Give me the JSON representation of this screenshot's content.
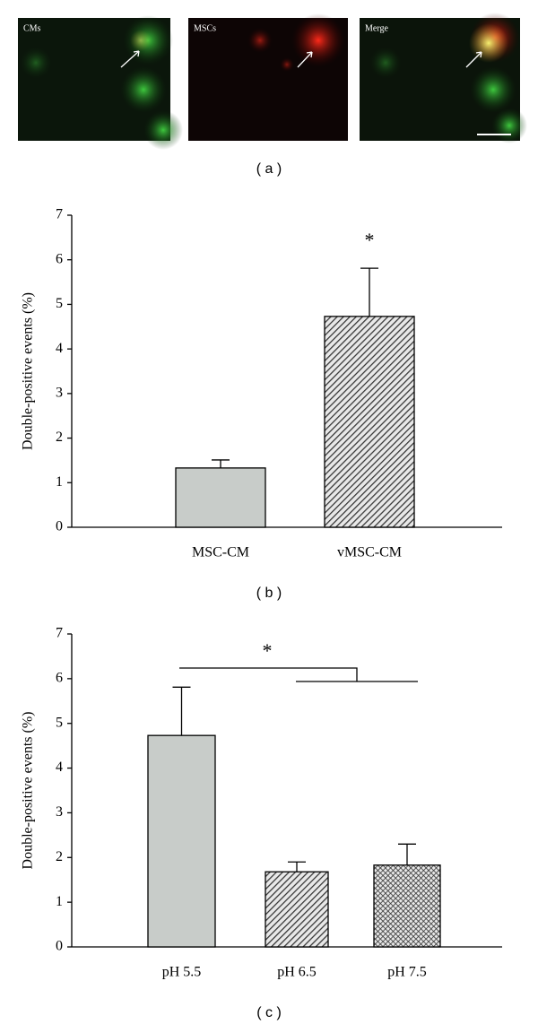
{
  "images": {
    "labels": [
      "CMs",
      "MSCs",
      "Merge"
    ],
    "caption": "( a )"
  },
  "chart_data": [
    {
      "type": "bar",
      "ylabel": "Double-positive events (%)",
      "categories": [
        "MSC-CM",
        "vMSC-CM"
      ],
      "values": [
        1.33,
        4.73
      ],
      "errors": [
        0.18,
        1.08
      ],
      "colors": [
        "#c8ccc9",
        "#555555"
      ],
      "patterns": [
        "solid",
        "diagonal"
      ],
      "ylim": [
        0,
        7
      ],
      "yticks": [
        0,
        1,
        2,
        3,
        4,
        5,
        6,
        7
      ],
      "annotation": "*",
      "caption": "( b )"
    },
    {
      "type": "bar",
      "ylabel": "Double-positive events (%)",
      "categories": [
        "pH 5.5",
        "pH 6.5",
        "pH 7.5"
      ],
      "values": [
        4.73,
        1.68,
        1.83
      ],
      "errors": [
        1.08,
        0.22,
        0.47
      ],
      "colors": [
        "#c8ccc9",
        "#555555",
        "#555555"
      ],
      "patterns": [
        "solid",
        "diagonal",
        "crosshatch"
      ],
      "ylim": [
        0,
        7
      ],
      "yticks": [
        0,
        1,
        2,
        3,
        4,
        5,
        6,
        7
      ],
      "annotation": "*",
      "caption": "( c )"
    }
  ]
}
